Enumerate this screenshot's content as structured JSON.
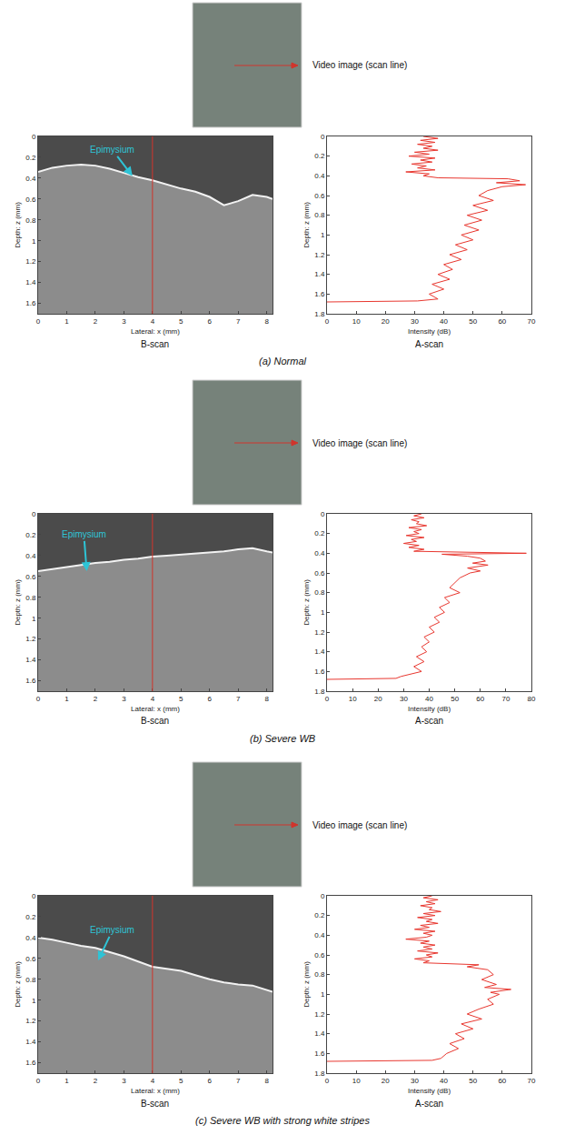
{
  "chart_data": [
    {
      "type": "area",
      "title": "B-scan",
      "caption": "(a) Normal",
      "x_label": "Lateral: x (mm)",
      "y_label": "Depth: z (mm)",
      "annotations": [
        "Epimysium",
        "Video image (scan line)"
      ],
      "x": [
        0,
        0.5,
        1,
        1.5,
        2,
        2.5,
        3,
        3.5,
        4,
        4.5,
        5,
        5.5,
        6,
        6.5,
        7,
        7.5,
        8,
        8.2
      ],
      "values": [
        0.34,
        0.3,
        0.28,
        0.27,
        0.28,
        0.31,
        0.35,
        0.39,
        0.42,
        0.46,
        0.5,
        0.53,
        0.58,
        0.66,
        0.62,
        0.56,
        0.58,
        0.6
      ],
      "scan_line_x": 4,
      "color": "#8c8c8c",
      "grid": false,
      "xlim": [
        0,
        8.2
      ],
      "ylim": [
        1.7,
        0
      ],
      "xticks": [
        0,
        1,
        2,
        3,
        4,
        5,
        6,
        7,
        8
      ],
      "yticks": [
        0,
        0.2,
        0.4,
        0.6,
        0.8,
        1,
        1.2,
        1.4,
        1.6
      ]
    },
    {
      "type": "line",
      "title": "A-scan",
      "x_label": "Intensity (dB)",
      "y_label": "Depth: z (mm)",
      "color": "#e8372f",
      "grid": false,
      "y": [
        0,
        0.02,
        0.04,
        0.06,
        0.08,
        0.1,
        0.12,
        0.14,
        0.16,
        0.18,
        0.2,
        0.22,
        0.24,
        0.26,
        0.28,
        0.3,
        0.32,
        0.34,
        0.36,
        0.38,
        0.4,
        0.42,
        0.43,
        0.45,
        0.47,
        0.49,
        0.51,
        0.55,
        0.6,
        0.65,
        0.7,
        0.75,
        0.8,
        0.85,
        0.9,
        0.95,
        1.0,
        1.05,
        1.1,
        1.15,
        1.2,
        1.25,
        1.3,
        1.35,
        1.4,
        1.45,
        1.5,
        1.55,
        1.6,
        1.65,
        1.67,
        1.68
      ],
      "x": [
        33,
        38,
        32,
        37,
        31,
        36,
        33,
        38,
        30,
        35,
        28,
        37,
        32,
        36,
        29,
        34,
        31,
        37,
        27,
        35,
        33,
        38,
        62,
        66,
        58,
        68,
        60,
        55,
        52,
        57,
        50,
        55,
        48,
        53,
        47,
        52,
        46,
        50,
        44,
        48,
        42,
        46,
        40,
        43,
        38,
        42,
        36,
        40,
        35,
        38,
        31,
        0
      ],
      "xlim": [
        0,
        70
      ],
      "ylim": [
        1.8,
        0
      ],
      "xticks": [
        0,
        10,
        20,
        30,
        40,
        50,
        60,
        70
      ],
      "yticks": [
        0,
        0.2,
        0.4,
        0.6,
        0.8,
        1,
        1.2,
        1.4,
        1.6,
        1.8
      ]
    },
    {
      "type": "area",
      "title": "B-scan",
      "caption": "(b) Severe WB",
      "x_label": "Lateral: x (mm)",
      "y_label": "Depth: z (mm)",
      "annotations": [
        "Epimysium",
        "Video image (scan line)"
      ],
      "x": [
        0,
        0.5,
        1,
        1.5,
        2,
        2.5,
        3,
        3.5,
        4,
        4.5,
        5,
        5.5,
        6,
        6.5,
        7,
        7.5,
        8,
        8.2
      ],
      "values": [
        0.55,
        0.53,
        0.51,
        0.49,
        0.47,
        0.46,
        0.44,
        0.43,
        0.41,
        0.4,
        0.39,
        0.38,
        0.37,
        0.36,
        0.34,
        0.33,
        0.36,
        0.37
      ],
      "scan_line_x": 4,
      "color": "#8c8c8c",
      "grid": false,
      "xlim": [
        0,
        8.2
      ],
      "ylim": [
        1.7,
        0
      ],
      "xticks": [
        0,
        1,
        2,
        3,
        4,
        5,
        6,
        7,
        8
      ],
      "yticks": [
        0,
        0.2,
        0.4,
        0.6,
        0.8,
        1,
        1.2,
        1.4,
        1.6
      ]
    },
    {
      "type": "line",
      "title": "A-scan",
      "x_label": "Intensity (dB)",
      "y_label": "Depth: z (mm)",
      "color": "#e8372f",
      "grid": false,
      "y": [
        0,
        0.02,
        0.04,
        0.06,
        0.08,
        0.1,
        0.12,
        0.14,
        0.16,
        0.18,
        0.2,
        0.22,
        0.24,
        0.26,
        0.28,
        0.3,
        0.32,
        0.34,
        0.36,
        0.38,
        0.4,
        0.41,
        0.43,
        0.45,
        0.48,
        0.5,
        0.52,
        0.55,
        0.58,
        0.6,
        0.65,
        0.7,
        0.75,
        0.8,
        0.85,
        0.9,
        0.95,
        1.0,
        1.05,
        1.1,
        1.15,
        1.2,
        1.25,
        1.3,
        1.35,
        1.4,
        1.45,
        1.5,
        1.55,
        1.6,
        1.65,
        1.67,
        1.68
      ],
      "x": [
        37,
        34,
        38,
        33,
        36,
        35,
        39,
        32,
        37,
        34,
        36,
        31,
        38,
        33,
        35,
        30,
        36,
        32,
        38,
        34,
        78,
        45,
        55,
        60,
        62,
        57,
        63,
        55,
        60,
        56,
        52,
        50,
        48,
        52,
        46,
        48,
        44,
        46,
        42,
        44,
        40,
        42,
        38,
        40,
        37,
        39,
        35,
        38,
        34,
        37,
        29,
        27,
        0
      ],
      "xlim": [
        0,
        80
      ],
      "ylim": [
        1.8,
        0
      ],
      "xticks": [
        0,
        10,
        20,
        30,
        40,
        50,
        60,
        70,
        80
      ],
      "yticks": [
        0,
        0.2,
        0.4,
        0.6,
        0.8,
        1,
        1.2,
        1.4,
        1.6,
        1.8
      ]
    },
    {
      "type": "area",
      "title": "B-scan",
      "caption": "(c) Severe WB with strong white stripes",
      "x_label": "Lateral: x (mm)",
      "y_label": "Depth: z (mm)",
      "annotations": [
        "Epimysium",
        "Video image (scan line)"
      ],
      "x": [
        0,
        0.5,
        1,
        1.5,
        2,
        2.5,
        3,
        3.5,
        4,
        4.5,
        5,
        5.5,
        6,
        6.5,
        7,
        7.5,
        8,
        8.2
      ],
      "values": [
        0.4,
        0.42,
        0.45,
        0.48,
        0.5,
        0.54,
        0.58,
        0.63,
        0.68,
        0.7,
        0.72,
        0.76,
        0.8,
        0.83,
        0.85,
        0.86,
        0.9,
        0.92
      ],
      "scan_line_x": 4,
      "color": "#8c8c8c",
      "grid": false,
      "xlim": [
        0,
        8.2
      ],
      "ylim": [
        1.7,
        0
      ],
      "xticks": [
        0,
        1,
        2,
        3,
        4,
        5,
        6,
        7,
        8
      ],
      "yticks": [
        0,
        0.2,
        0.4,
        0.6,
        0.8,
        1,
        1.2,
        1.4,
        1.6
      ]
    },
    {
      "type": "line",
      "title": "A-scan",
      "x_label": "Intensity (dB)",
      "y_label": "Depth: z (mm)",
      "color": "#e8372f",
      "grid": false,
      "y": [
        0,
        0.02,
        0.04,
        0.06,
        0.08,
        0.1,
        0.12,
        0.14,
        0.16,
        0.18,
        0.2,
        0.22,
        0.24,
        0.26,
        0.28,
        0.3,
        0.32,
        0.34,
        0.36,
        0.38,
        0.4,
        0.42,
        0.44,
        0.46,
        0.48,
        0.5,
        0.52,
        0.54,
        0.56,
        0.58,
        0.6,
        0.62,
        0.64,
        0.66,
        0.68,
        0.7,
        0.72,
        0.75,
        0.8,
        0.85,
        0.9,
        0.93,
        0.95,
        0.98,
        1.0,
        1.05,
        1.1,
        1.15,
        1.2,
        1.25,
        1.3,
        1.35,
        1.4,
        1.45,
        1.5,
        1.55,
        1.6,
        1.65,
        1.67,
        1.68
      ],
      "x": [
        36,
        33,
        38,
        34,
        37,
        32,
        36,
        35,
        39,
        33,
        37,
        31,
        36,
        34,
        38,
        32,
        35,
        30,
        37,
        33,
        36,
        34,
        27,
        35,
        32,
        37,
        33,
        36,
        31,
        38,
        34,
        36,
        30,
        35,
        33,
        52,
        48,
        55,
        57,
        53,
        58,
        54,
        63,
        56,
        59,
        55,
        57,
        52,
        48,
        53,
        46,
        50,
        44,
        47,
        42,
        45,
        41,
        39,
        36,
        0
      ],
      "xlim": [
        0,
        70
      ],
      "ylim": [
        1.8,
        0
      ],
      "xticks": [
        0,
        10,
        20,
        30,
        40,
        50,
        60,
        70
      ],
      "yticks": [
        0,
        0.2,
        0.4,
        0.6,
        0.8,
        1,
        1.2,
        1.4,
        1.6,
        1.8
      ]
    }
  ]
}
